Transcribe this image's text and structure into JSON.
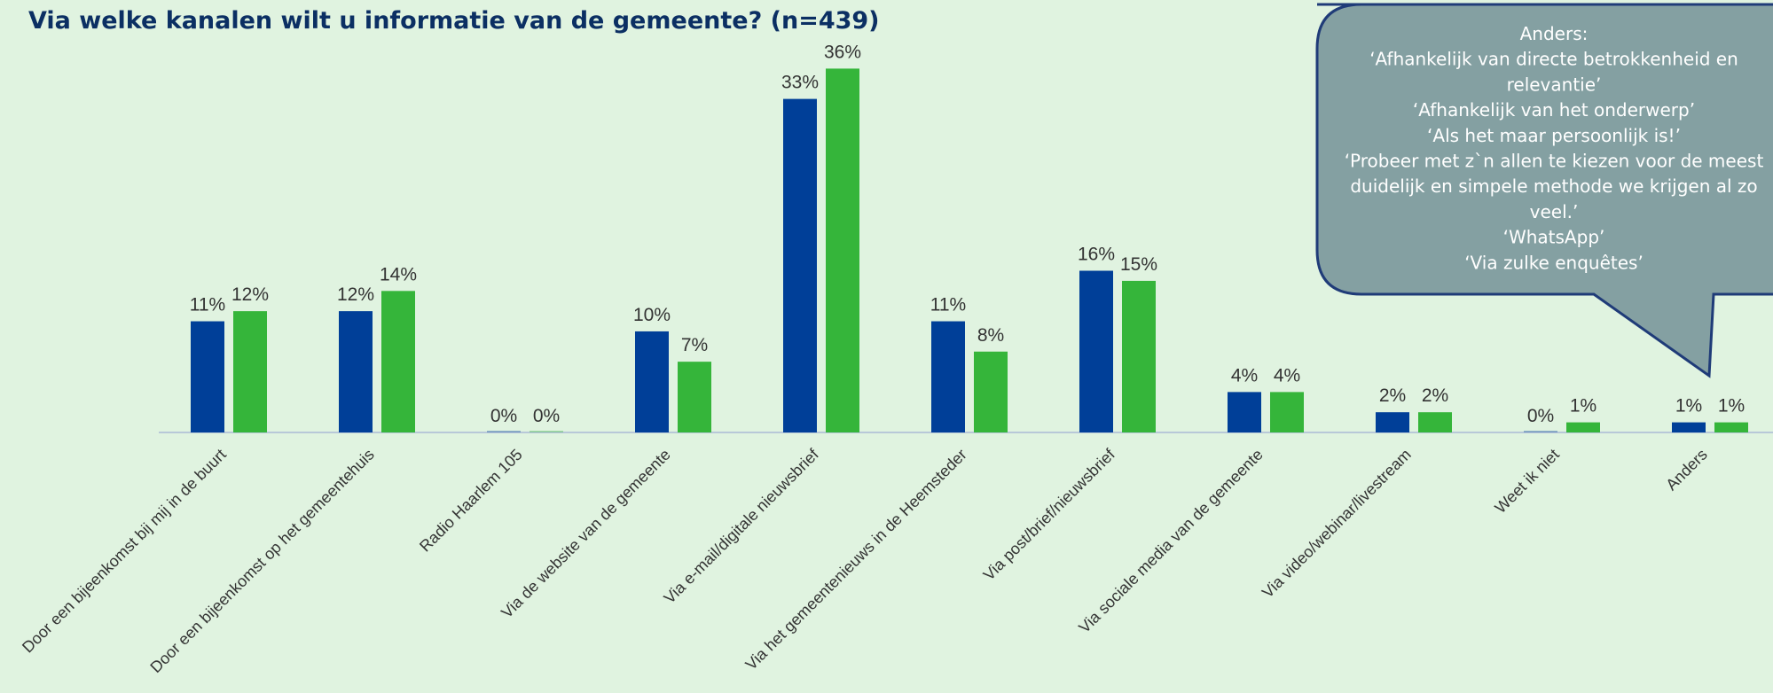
{
  "page": {
    "background": "#e0f3e0"
  },
  "chart_data": {
    "type": "bar",
    "title": "Via welke kanalen wilt u informatie van de gemeente? (n=439)",
    "categories": [
      "Door een bijeenkomst bij mij in de buurt",
      "Door een bijeenkomst op het gemeentehuis",
      "Radio Haarlem 105",
      "Via de website van de gemeente",
      "Via e-mail/digitale nieuwsbrief",
      "Via het gemeentenieuws in de Heemsteder",
      "Via post/brief/nieuwsbrief",
      "Via sociale media van de gemeente",
      "Via video/webinar/livestream",
      "Weet ik niet",
      "Anders"
    ],
    "series": [
      {
        "color": "#003f98",
        "values": [
          11,
          12,
          0,
          10,
          33,
          11,
          16,
          4,
          2,
          0,
          1
        ],
        "labels": [
          "11%",
          "12%",
          "0%",
          "10%",
          "33%",
          "11%",
          "16%",
          "4%",
          "2%",
          "0%",
          "1%"
        ]
      },
      {
        "color": "#35b53a",
        "values": [
          12,
          14,
          0,
          7,
          36,
          8,
          15,
          4,
          2,
          1,
          1
        ],
        "labels": [
          "12%",
          "14%",
          "0%",
          "7%",
          "36%",
          "8%",
          "15%",
          "4%",
          "2%",
          "1%",
          "1%"
        ]
      }
    ],
    "ylim": [
      0,
      37
    ],
    "unit": "%",
    "grid": false,
    "legend": "none"
  },
  "callout": {
    "lines": [
      "Anders:",
      "‘Afhankelijk van directe betrokkenheid en",
      "relevantie’",
      "‘Afhankelijk van het onderwerp’",
      "‘Als het maar persoonlijk is!’",
      "‘Probeer met z`n allen te kiezen voor de meest",
      "duidelijk en simpele methode we krijgen al zo",
      "veel.’",
      "‘WhatsApp’",
      "‘Via zulke enquêtes’"
    ],
    "fill": "#84a0a2",
    "stroke": "#1f3b78"
  }
}
